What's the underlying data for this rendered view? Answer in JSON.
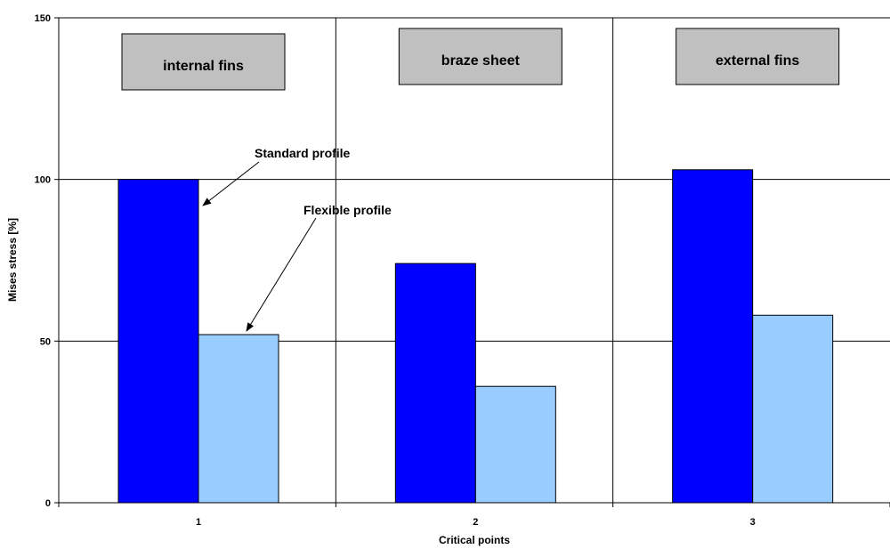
{
  "chart_data": {
    "type": "bar",
    "categories": [
      "1",
      "2",
      "3"
    ],
    "series": [
      {
        "values": [
          100,
          74,
          103
        ],
        "color": "#0000ff"
      },
      {
        "values": [
          52,
          36,
          58
        ],
        "color": "#99ccff"
      }
    ],
    "xlabel": "Critical points",
    "ylabel": "Mises stress  [%]",
    "ylim": [
      0,
      150
    ],
    "yticks": [
      0,
      50,
      100,
      150
    ],
    "grid": true,
    "region_labels": [
      "internal fins",
      "braze sheet",
      "external fins"
    ],
    "annotations": [
      "Standard profile",
      "Flexible profile"
    ]
  }
}
